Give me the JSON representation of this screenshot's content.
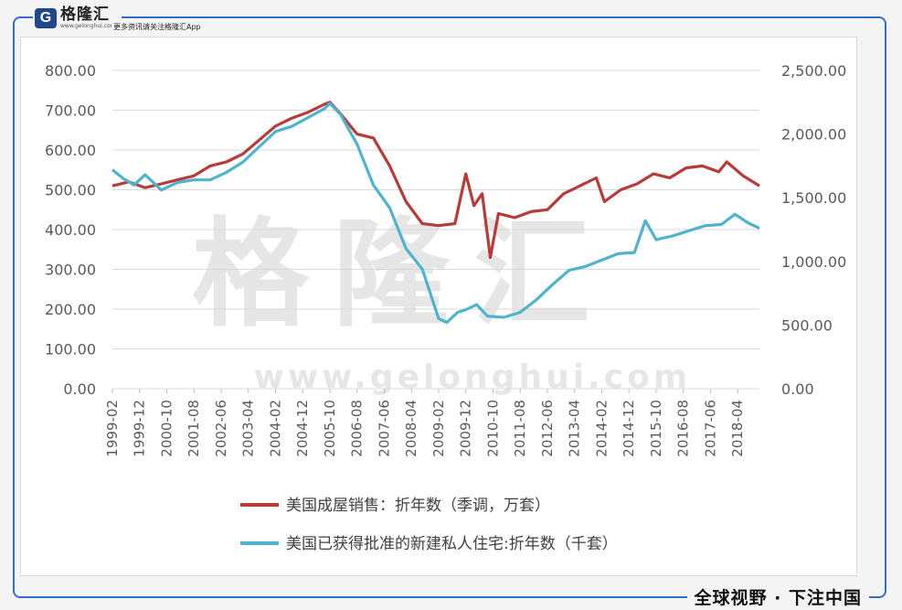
{
  "brand": {
    "logo_letter": "G",
    "name": "格隆汇",
    "url": "www.gelonghui.com",
    "tagline": "更多资讯请关注格隆汇App"
  },
  "footer": {
    "slogan": "全球视野 · 下注中国"
  },
  "watermark": {
    "text": "格隆汇",
    "url": "www.gelonghui.com"
  },
  "colors": {
    "red": "#b83b37",
    "blue": "#4fb3cf",
    "frame": "#2f6fc9",
    "logo": "#23458c"
  },
  "chart_data": {
    "type": "line",
    "y_left": {
      "range": [
        0,
        800
      ],
      "ticks": [
        "0.00",
        "100.00",
        "200.00",
        "300.00",
        "400.00",
        "500.00",
        "600.00",
        "700.00",
        "800.00"
      ]
    },
    "y_right": {
      "range": [
        0,
        2500
      ],
      "ticks": [
        "0.00",
        "500.00",
        "1,000.00",
        "1,500.00",
        "2,000.00",
        "2,500.00"
      ]
    },
    "x_tick_labels": [
      "1999-02",
      "1999-12",
      "2000-10",
      "2001-08",
      "2002-06",
      "2003-04",
      "2004-02",
      "2004-12",
      "2005-10",
      "2006-08",
      "2007-06",
      "2008-04",
      "2009-02",
      "2009-12",
      "2010-10",
      "2011-08",
      "2012-06",
      "2013-04",
      "2014-02",
      "2014-12",
      "2015-10",
      "2016-08",
      "2017-06",
      "2018-04"
    ],
    "x_range": [
      "1999-02",
      "2018-12"
    ],
    "grid": true,
    "legend_position": "bottom",
    "series": [
      {
        "name": "美国成屋销售：折年数（季调，万套）",
        "axis": "left",
        "color": "#b83b37",
        "points": [
          [
            "1999-02",
            510
          ],
          [
            "1999-08",
            520
          ],
          [
            "2000-02",
            505
          ],
          [
            "2000-08",
            515
          ],
          [
            "2001-02",
            525
          ],
          [
            "2001-08",
            535
          ],
          [
            "2002-02",
            560
          ],
          [
            "2002-08",
            570
          ],
          [
            "2003-02",
            590
          ],
          [
            "2003-08",
            625
          ],
          [
            "2004-02",
            660
          ],
          [
            "2004-08",
            680
          ],
          [
            "2005-02",
            695
          ],
          [
            "2005-08",
            715
          ],
          [
            "2005-10",
            720
          ],
          [
            "2006-02",
            690
          ],
          [
            "2006-08",
            640
          ],
          [
            "2007-02",
            630
          ],
          [
            "2007-08",
            560
          ],
          [
            "2008-02",
            470
          ],
          [
            "2008-08",
            415
          ],
          [
            "2009-02",
            410
          ],
          [
            "2009-08",
            415
          ],
          [
            "2009-12",
            540
          ],
          [
            "2010-03",
            460
          ],
          [
            "2010-06",
            490
          ],
          [
            "2010-09",
            330
          ],
          [
            "2010-12",
            440
          ],
          [
            "2011-06",
            430
          ],
          [
            "2011-12",
            445
          ],
          [
            "2012-06",
            450
          ],
          [
            "2012-12",
            490
          ],
          [
            "2013-06",
            510
          ],
          [
            "2013-12",
            530
          ],
          [
            "2014-03",
            470
          ],
          [
            "2014-09",
            500
          ],
          [
            "2015-03",
            515
          ],
          [
            "2015-09",
            540
          ],
          [
            "2016-03",
            530
          ],
          [
            "2016-09",
            555
          ],
          [
            "2017-03",
            560
          ],
          [
            "2017-09",
            545
          ],
          [
            "2017-12",
            570
          ],
          [
            "2018-06",
            535
          ],
          [
            "2018-12",
            510
          ]
        ]
      },
      {
        "name": "美国已获得批准的新建私人住宅:折年数（千套）",
        "axis": "right",
        "color": "#4fb3cf",
        "points": [
          [
            "1999-02",
            1720
          ],
          [
            "1999-06",
            1650
          ],
          [
            "1999-10",
            1600
          ],
          [
            "2000-02",
            1680
          ],
          [
            "2000-08",
            1560
          ],
          [
            "2001-02",
            1620
          ],
          [
            "2001-08",
            1640
          ],
          [
            "2002-02",
            1640
          ],
          [
            "2002-08",
            1700
          ],
          [
            "2003-02",
            1780
          ],
          [
            "2003-08",
            1900
          ],
          [
            "2004-02",
            2020
          ],
          [
            "2004-08",
            2060
          ],
          [
            "2005-02",
            2130
          ],
          [
            "2005-08",
            2200
          ],
          [
            "2005-10",
            2240
          ],
          [
            "2006-02",
            2150
          ],
          [
            "2006-08",
            1920
          ],
          [
            "2007-02",
            1600
          ],
          [
            "2007-08",
            1420
          ],
          [
            "2008-02",
            1100
          ],
          [
            "2008-08",
            940
          ],
          [
            "2009-02",
            550
          ],
          [
            "2009-05",
            520
          ],
          [
            "2009-09",
            600
          ],
          [
            "2009-12",
            620
          ],
          [
            "2010-04",
            660
          ],
          [
            "2010-08",
            570
          ],
          [
            "2011-02",
            560
          ],
          [
            "2011-08",
            600
          ],
          [
            "2012-02",
            700
          ],
          [
            "2012-08",
            820
          ],
          [
            "2013-02",
            930
          ],
          [
            "2013-08",
            960
          ],
          [
            "2014-02",
            1010
          ],
          [
            "2014-08",
            1060
          ],
          [
            "2015-02",
            1070
          ],
          [
            "2015-06",
            1320
          ],
          [
            "2015-10",
            1170
          ],
          [
            "2016-04",
            1200
          ],
          [
            "2016-10",
            1240
          ],
          [
            "2017-04",
            1280
          ],
          [
            "2017-10",
            1290
          ],
          [
            "2018-03",
            1370
          ],
          [
            "2018-08",
            1300
          ],
          [
            "2018-12",
            1260
          ]
        ]
      }
    ]
  }
}
